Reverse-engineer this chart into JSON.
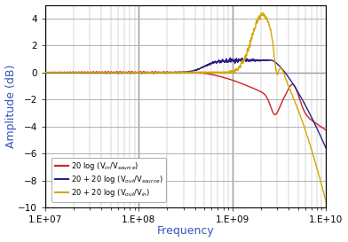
{
  "title": "",
  "xlabel": "Frequency",
  "ylabel": "Amplitude (dB)",
  "xlim": [
    10000000.0,
    10000000000.0
  ],
  "ylim": [
    -10,
    5
  ],
  "yticks": [
    -10,
    -8,
    -6,
    -4,
    -2,
    0,
    2,
    4
  ],
  "background_color": "#ffffff",
  "grid_color": "#b0b0b0",
  "line1_color": "#cc2222",
  "line2_color": "#2b1f8a",
  "line3_color": "#d4a800",
  "label1": "20 log (V$_{in}$/V$_{source}$)",
  "label2": "20 + 20 log (V$_{out}$/V$_{source}$)",
  "label3": "20 + 20 log (V$_{out}$/V$_{in}$)"
}
